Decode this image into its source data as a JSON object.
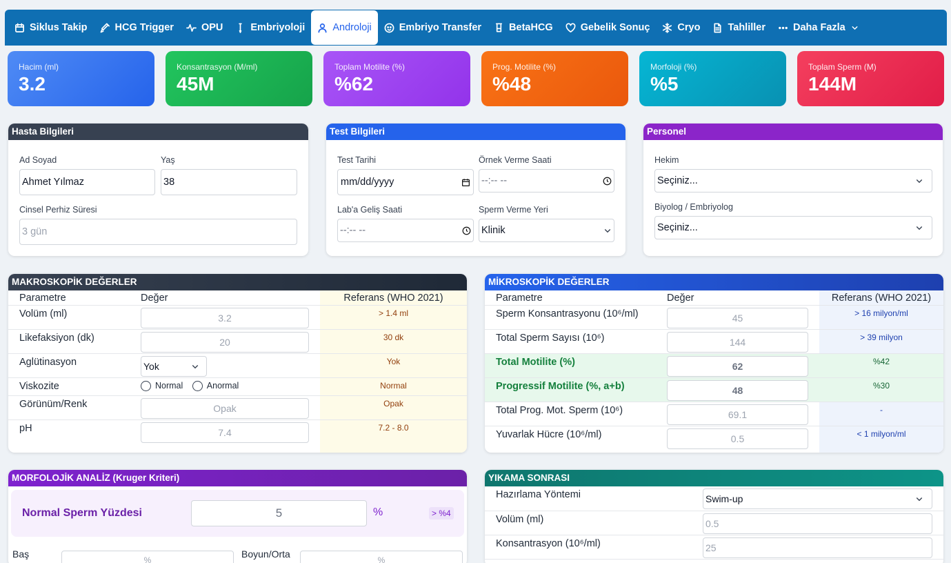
{
  "nav": {
    "items": [
      {
        "label": "Siklus Takip",
        "icon": "calendar-icon"
      },
      {
        "label": "HCG Trigger",
        "icon": "syringe-icon"
      },
      {
        "label": "OPU",
        "icon": "activity-icon"
      },
      {
        "label": "Embriyoloji",
        "icon": "pipette-icon"
      },
      {
        "label": "Androloji",
        "icon": "user-icon"
      },
      {
        "label": "Embriyo Transfer",
        "icon": "baby-icon"
      },
      {
        "label": "BetaHCG",
        "icon": "test-tube-icon"
      },
      {
        "label": "Gebelik Sonuç",
        "icon": "heart-icon"
      },
      {
        "label": "Cryo",
        "icon": "snowflake-icon"
      },
      {
        "label": "Tahliller",
        "icon": "document-icon"
      },
      {
        "label": "Daha Fazla",
        "icon": "more-icon"
      }
    ]
  },
  "stats": [
    {
      "label": "Hacim (ml)",
      "value": "3.2",
      "color": "#3b82f6"
    },
    {
      "label": "Konsantrasyon (M/ml)",
      "value": "45M",
      "color": "#16a34a"
    },
    {
      "label": "Toplam Motilite (%)",
      "value": "%62",
      "color": "#9333ea"
    },
    {
      "label": "Prog. Motilite (%)",
      "value": "%48",
      "color": "#ea580c"
    },
    {
      "label": "Morfoloji (%)",
      "value": "%5",
      "color": "#0891b2"
    },
    {
      "label": "Toplam Sperm (M)",
      "value": "144M",
      "color": "#e11d48"
    }
  ],
  "patient": {
    "title": "Hasta Bilgileri",
    "name_label": "Ad Soyad",
    "name_value": "Ahmet Yılmaz",
    "age_label": "Yaş",
    "age_value": "38",
    "abstinence_label": "Cinsel Perhiz Süresi",
    "abstinence_placeholder": "3 gün"
  },
  "test": {
    "title": "Test Bilgileri",
    "date_label": "Test Tarihi",
    "date_value": "mm/dd/yyyy",
    "sample_time_label": "Örnek Verme Saati",
    "sample_time_value": "--:-- --",
    "lab_time_label": "Lab'a Geliş Saati",
    "lab_time_value": "--:-- --",
    "place_label": "Sperm Verme Yeri",
    "place_value": "Klinik"
  },
  "staff": {
    "title": "Personel",
    "doctor_label": "Hekim",
    "doctor_value": "Seçiniz...",
    "bio_label": "Biyolog / Embriyolog",
    "bio_value": "Seçiniz..."
  },
  "macro": {
    "title": "MAKROSKOPİK DEĞERLER",
    "col_param": "Parametre",
    "col_value": "Değer",
    "col_ref": "Referans (WHO 2021)",
    "rows": [
      {
        "param": "Volüm (ml)",
        "value": "3.2",
        "ref": "> 1.4 ml"
      },
      {
        "param": "Likefaksiyon (dk)",
        "value": "20",
        "ref": "30 dk"
      },
      {
        "param": "Aglütinasyon",
        "value": "Yok",
        "ref": "Yok"
      },
      {
        "param": "Viskozite",
        "value": "",
        "ref": "Normal"
      },
      {
        "param": "Görünüm/Renk",
        "value": "Opak",
        "ref": "Opak"
      },
      {
        "param": "pH",
        "value": "7.4",
        "ref": "7.2 - 8.0"
      }
    ],
    "viscosity_options": [
      "Normal",
      "Anormal"
    ]
  },
  "micro": {
    "title": "MİKROSKOPİK DEĞERLER",
    "col_param": "Parametre",
    "col_value": "Değer",
    "col_ref": "Referans (WHO 2021)",
    "rows": [
      {
        "param": "Sperm Konsantrasyonu (10⁶/ml)",
        "value": "45",
        "ref": "> 16 milyon/ml"
      },
      {
        "param": "Total Sperm Sayısı (10⁶)",
        "value": "144",
        "ref": "> 39 milyon"
      },
      {
        "param": "Total Motilite (%)",
        "value": "62",
        "ref": "%42"
      },
      {
        "param": "Progressif Motilite (%, a+b)",
        "value": "48",
        "ref": "%30"
      },
      {
        "param": "Total Prog. Mot. Sperm (10⁶)",
        "value": "69.1",
        "ref": "-"
      },
      {
        "param": "Yuvarlak Hücre (10⁶/ml)",
        "value": "0.5",
        "ref": "< 1 milyon/ml"
      }
    ]
  },
  "morph": {
    "title": "MORFOLOJİK ANALİZ (Kruger Kriteri)",
    "normal_label": "Normal Sperm Yüzdesi",
    "normal_value": "5",
    "unit": "%",
    "ref": "> %4",
    "head_label": "Baş",
    "head_placeholder": "%",
    "neck_label": "Boyun/Orta",
    "neck_placeholder": "%"
  },
  "wash": {
    "title": "YIKAMA SONRASI",
    "method_label": "Hazırlama Yöntemi",
    "method_value": "Swim-up",
    "volume_label": "Volüm (ml)",
    "volume_placeholder": "0.5",
    "conc_label": "Konsantrasyon (10⁶/ml)",
    "conc_placeholder": "25"
  }
}
